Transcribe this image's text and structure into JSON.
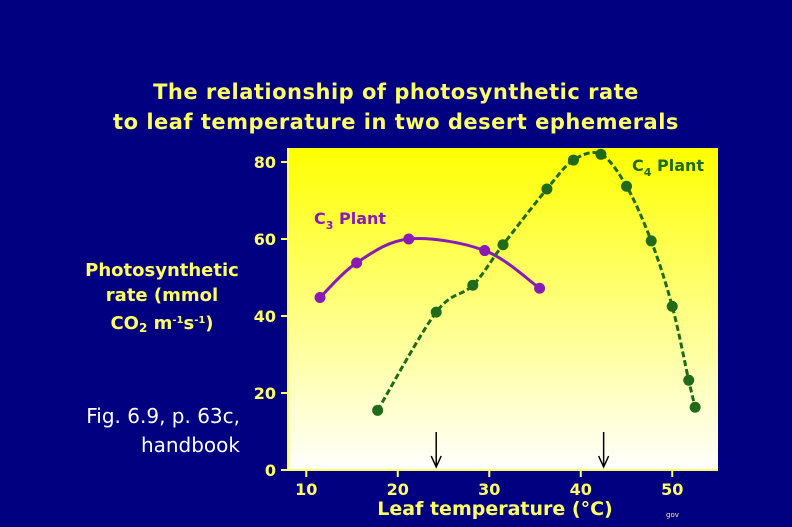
{
  "slide": {
    "title_line1": "The relationship of photosynthetic rate",
    "title_line2": "to leaf temperature in two desert ephemerals",
    "caption_line1": "Fig. 6.9, p. 63c,",
    "caption_line2": "handbook",
    "watermark": "gov"
  },
  "chart_data": {
    "type": "line",
    "title": "The relationship of photosynthetic rate to leaf temperature in two desert ephemerals",
    "xlabel": "Leaf temperature (°C)",
    "ylabel_parts": {
      "line1": "Photosynthetic",
      "line2": "rate (mmol",
      "line3_a": "CO",
      "line3_sub": "2",
      "line3_b": " m",
      "line3_sup1": "-1",
      "line3_c": "s",
      "line3_sup2": "-1",
      "line3_d": ")"
    },
    "xlim": [
      8,
      55
    ],
    "ylim": [
      0,
      82
    ],
    "x_ticks": [
      10,
      20,
      30,
      40,
      50
    ],
    "y_ticks": [
      0,
      20,
      40,
      60,
      80
    ],
    "grid": false,
    "plot_background": "gradient white-to-yellow",
    "colors": {
      "background": "#000080",
      "text": "#ffff66",
      "c3": "#8a1ab8",
      "c4": "#1f6b1a"
    },
    "series": [
      {
        "name_main": "C",
        "name_sub": "3",
        "name_rest": " Plant",
        "color": "#8a1ab8",
        "x": [
          11.5,
          15.5,
          21.2,
          29.5,
          35.5
        ],
        "y": [
          44.8,
          53.8,
          60.0,
          57.0,
          47.2
        ]
      },
      {
        "name_main": "C",
        "name_sub": "4",
        "name_rest": " Plant",
        "color": "#1f6b1a",
        "x": [
          17.8,
          24.2,
          28.2,
          31.5,
          36.3,
          39.2,
          42.2,
          45.0,
          47.7,
          50.0,
          51.8,
          52.5
        ],
        "y": [
          15.5,
          41.0,
          48.0,
          58.5,
          73.0,
          80.5,
          82.0,
          73.7,
          59.5,
          42.5,
          23.3,
          16.3
        ]
      }
    ],
    "markers": [
      {
        "x": 24.2,
        "direction": "down"
      },
      {
        "x": 42.5,
        "direction": "down"
      }
    ]
  }
}
